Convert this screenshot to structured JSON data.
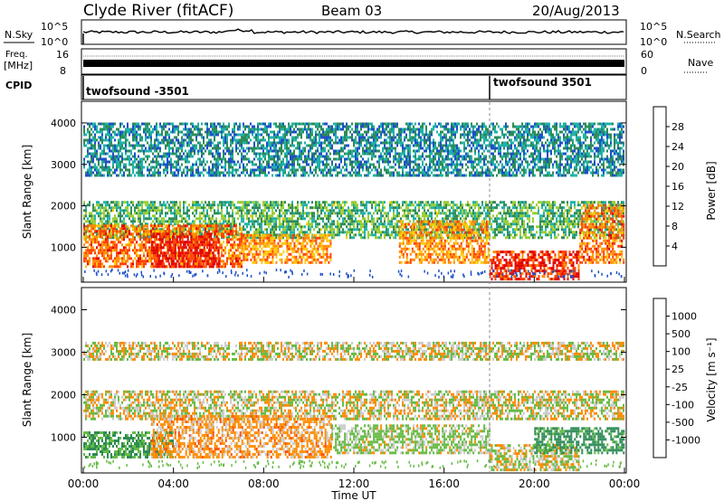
{
  "header": {
    "title": "Clyde River (fitACF)",
    "beam": "Beam 03",
    "date": "20/Aug/2013"
  },
  "panels": {
    "nsky": {
      "label": "N.Sky",
      "ticks": [
        "10^5",
        "10^0"
      ],
      "right_label": "N.Search",
      "right_ticks": [
        "10^5",
        "10^0"
      ]
    },
    "freq": {
      "label_line1": "Freq.",
      "label_line2": "[MHz]",
      "ticks": [
        "16",
        "8"
      ],
      "right_label": "Nave",
      "right_ticks": [
        "60",
        "0"
      ]
    },
    "cpid": {
      "label": "CPID",
      "segments": [
        {
          "start_hour": 0,
          "text": "twofsound -3501"
        },
        {
          "start_hour": 18,
          "text": "twofsound 3501"
        }
      ]
    }
  },
  "power_panel": {
    "ylabel": "Slant Range [km]",
    "colorbar_label": "Power [dB]",
    "colorbar_ticks": [
      "28",
      "24",
      "20",
      "16",
      "12",
      "8",
      "4"
    ],
    "colorbar_colors": [
      "#e00000",
      "#ff4000",
      "#ff8c00",
      "#ffc800",
      "#9acd32",
      "#2e8b57",
      "#20b2aa",
      "#1e50c8",
      "#0000ff"
    ]
  },
  "velocity_panel": {
    "ylabel": "Slant Range [km]",
    "colorbar_label": "Velocity [m s⁻¹]",
    "colorbar_ticks": [
      "1000",
      "500",
      "100",
      "25",
      "-25",
      "-100",
      "-500",
      "-1000"
    ],
    "colorbar_colors": [
      "#1e3ca0",
      "#2e8b57",
      "#66bb44",
      "#cccccc",
      "#cccccc",
      "#ff8c00",
      "#ff5000",
      "#e00000"
    ]
  },
  "x_axis": {
    "label": "Time UT",
    "ticks": [
      "00:00",
      "04:00",
      "08:00",
      "12:00",
      "16:00",
      "20:00",
      "00:00"
    ]
  },
  "chart_data": {
    "type": "heatmap",
    "x_range_hours": [
      0,
      24
    ],
    "y_range_km": [
      180,
      4500
    ],
    "y_ticks": [
      1000,
      2000,
      3000,
      4000
    ],
    "power_db_range": [
      0,
      30
    ],
    "velocity_range": [
      -1000,
      1000
    ],
    "echo_bands": [
      {
        "field": "power",
        "t": [
          0,
          24
        ],
        "r": [
          1200,
          2100
        ],
        "value": 12
      },
      {
        "field": "power",
        "t": [
          0,
          7
        ],
        "r": [
          500,
          1500
        ],
        "value": 24
      },
      {
        "field": "power",
        "t": [
          3,
          6
        ],
        "r": [
          500,
          1300
        ],
        "value": 30
      },
      {
        "field": "power",
        "t": [
          7,
          11
        ],
        "r": [
          600,
          1300
        ],
        "value": 22
      },
      {
        "field": "power",
        "t": [
          14,
          18
        ],
        "r": [
          600,
          1600
        ],
        "value": 22
      },
      {
        "field": "power",
        "t": [
          18,
          22
        ],
        "r": [
          200,
          900
        ],
        "value": 28
      },
      {
        "field": "power",
        "t": [
          22,
          24
        ],
        "r": [
          600,
          2000
        ],
        "value": 24
      },
      {
        "field": "power",
        "t": [
          0,
          24
        ],
        "r": [
          2700,
          4000
        ],
        "value": 8
      },
      {
        "field": "velocity",
        "t": [
          0,
          24
        ],
        "r": [
          1400,
          2100
        ],
        "value": 0
      },
      {
        "field": "velocity",
        "t": [
          0,
          4
        ],
        "r": [
          500,
          1100
        ],
        "value": 300
      },
      {
        "field": "velocity",
        "t": [
          3,
          11
        ],
        "r": [
          500,
          1500
        ],
        "value": -150
      },
      {
        "field": "velocity",
        "t": [
          11,
          18
        ],
        "r": [
          600,
          1300
        ],
        "value": 100
      },
      {
        "field": "velocity",
        "t": [
          18,
          22
        ],
        "r": [
          200,
          800
        ],
        "value": 0
      },
      {
        "field": "velocity",
        "t": [
          20,
          24
        ],
        "r": [
          600,
          1200
        ],
        "value": 400
      },
      {
        "field": "velocity",
        "t": [
          0,
          24
        ],
        "r": [
          2800,
          3200
        ],
        "value": 0
      }
    ]
  }
}
